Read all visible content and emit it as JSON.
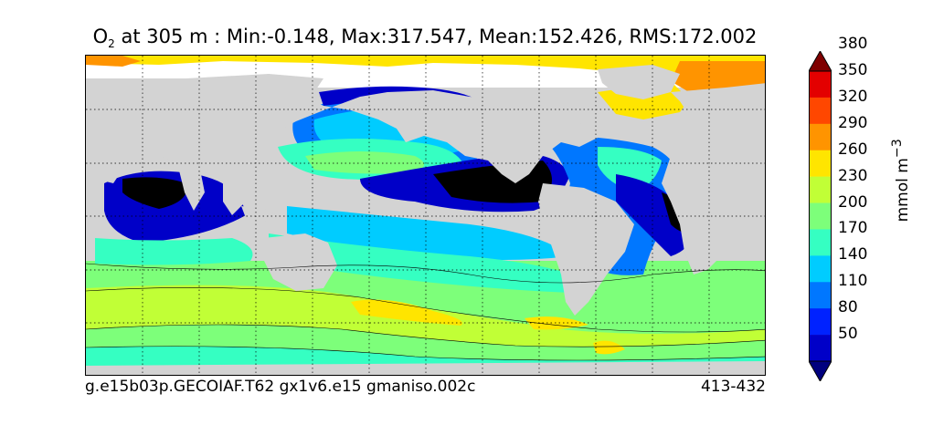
{
  "title": {
    "species": "O",
    "species_sub": "2",
    "text": " at 305 m : Min:-0.148, Max:317.547, Mean:152.426, RMS:172.002"
  },
  "footer": {
    "left": "g.e15b03p.GECOIAF.T62 gx1v6.e15 gmaniso.002c",
    "right": "413-432"
  },
  "colorbar": {
    "units_text": "mmol m",
    "units_sup": "−3",
    "tick_labels": [
      "50",
      "80",
      "110",
      "140",
      "170",
      "200",
      "230",
      "260",
      "290",
      "320",
      "350",
      "380"
    ],
    "levels_colors": [
      "#00007f",
      "#0000c8",
      "#0022ff",
      "#0077ff",
      "#00ccff",
      "#35ffc2",
      "#7dff7a",
      "#c1ff36",
      "#ffe500",
      "#ff9400",
      "#ff4700",
      "#e30000",
      "#7f0000"
    ]
  },
  "map": {
    "land_color": "#d3d3d3",
    "missing_color": "#ffffff",
    "contour_line_color": "#000000",
    "grid": "dotted black, every 30°",
    "projection": "cylindrical global"
  }
}
